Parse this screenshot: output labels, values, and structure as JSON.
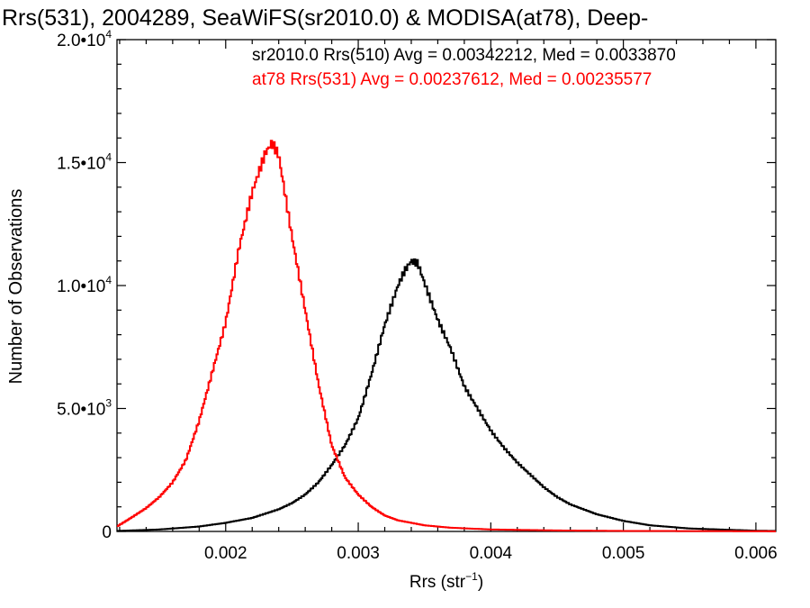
{
  "chart_data": {
    "type": "line",
    "title": "Rrs(531), 2004289, SeaWiFS(sr2010.0) & MODISA(at78), Deep-",
    "xlabel_main": "Rrs (str",
    "xlabel_exp": "−1",
    "xlabel_close": ")",
    "ylabel": "Number of Observations",
    "xlim": [
      0.00118,
      0.00615
    ],
    "ylim": [
      0,
      20000
    ],
    "x_ticks": [
      {
        "value": 0.002,
        "label": "0.002"
      },
      {
        "value": 0.003,
        "label": "0.003"
      },
      {
        "value": 0.004,
        "label": "0.004"
      },
      {
        "value": 0.005,
        "label": "0.005"
      },
      {
        "value": 0.006,
        "label": "0.006"
      }
    ],
    "y_ticks": [
      {
        "value": 0,
        "mant": "0",
        "exp": ""
      },
      {
        "value": 5000,
        "mant": "5.0•10",
        "exp": "3"
      },
      {
        "value": 10000,
        "mant": "1.0•10",
        "exp": "4"
      },
      {
        "value": 15000,
        "mant": "1.5•10",
        "exp": "4"
      },
      {
        "value": 20000,
        "mant": "2.0•10",
        "exp": "4"
      }
    ],
    "legend": {
      "line1": "sr2010.0 Rrs(510) Avg = 0.00342212, Med = 0.0033870",
      "line2": "at78 Rrs(531) Avg = 0.00237612, Med = 0.00235577"
    },
    "series": [
      {
        "color": "#000000",
        "x": [
          0.00118,
          0.0015,
          0.0018,
          0.002,
          0.0022,
          0.0024,
          0.0025,
          0.0026,
          0.0027,
          0.0028,
          0.0029,
          0.003,
          0.0031,
          0.0032,
          0.0033,
          0.00335,
          0.0034,
          0.00345,
          0.0035,
          0.0036,
          0.0037,
          0.0038,
          0.0039,
          0.004,
          0.0041,
          0.0042,
          0.0043,
          0.0044,
          0.0045,
          0.0046,
          0.0048,
          0.005,
          0.0052,
          0.0055,
          0.006,
          0.00615
        ],
        "y": [
          20,
          80,
          200,
          350,
          550,
          900,
          1150,
          1500,
          2000,
          2700,
          3500,
          4600,
          6400,
          8400,
          10000,
          10600,
          11000,
          10900,
          10100,
          8600,
          7400,
          5900,
          5000,
          4100,
          3400,
          2800,
          2300,
          1800,
          1400,
          1100,
          700,
          430,
          250,
          120,
          30,
          20
        ]
      },
      {
        "color": "#ff0000",
        "x": [
          0.00118,
          0.0013,
          0.0014,
          0.0015,
          0.0016,
          0.0017,
          0.0018,
          0.0019,
          0.002,
          0.0021,
          0.0022,
          0.0023,
          0.00235,
          0.0024,
          0.0025,
          0.0026,
          0.0027,
          0.0028,
          0.0029,
          0.003,
          0.0031,
          0.0032,
          0.0033,
          0.0035,
          0.0037,
          0.004,
          0.0045,
          0.005,
          0.006,
          0.00615
        ],
        "y": [
          200,
          600,
          950,
          1400,
          2000,
          2900,
          4500,
          6500,
          8500,
          11500,
          13800,
          15400,
          15800,
          15300,
          12000,
          9000,
          6000,
          3500,
          2200,
          1500,
          1000,
          650,
          450,
          250,
          150,
          80,
          40,
          20,
          10,
          5
        ]
      }
    ]
  }
}
